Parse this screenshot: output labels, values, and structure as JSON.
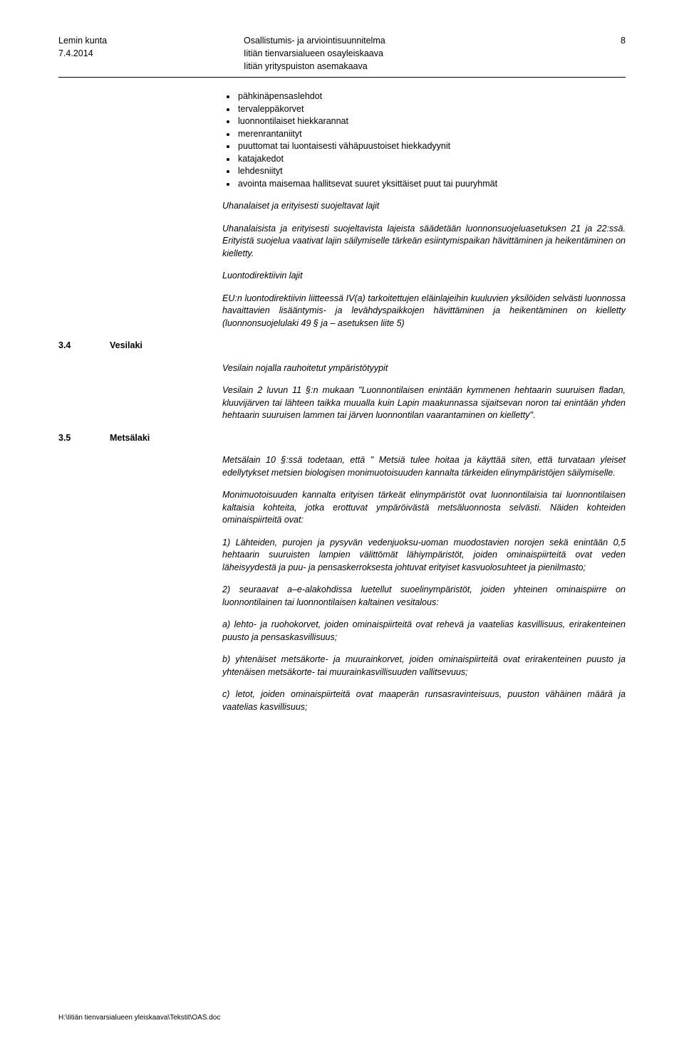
{
  "header": {
    "left_line1": "Lemin kunta",
    "left_line2": "7.4.2014",
    "center_line1": "Osallistumis- ja arviointisuunnitelma",
    "center_line2": "Iitiän tienvarsialueen osayleiskaava",
    "center_line3": "Iitiän yrityspuiston asemakaava",
    "page_number": "8"
  },
  "bullets": [
    "pähkinäpensaslehdot",
    "tervaleppäkorvet",
    "luonnontilaiset hiekkarannat",
    "merenrantaniityt",
    "puuttomat tai luontaisesti vähäpuustoiset hiekkadyynit",
    "katajakedot",
    "lehdesniityt",
    "avointa maisemaa hallitsevat suuret yksittäiset puut tai puuryhmät"
  ],
  "sub1_title": "Uhanalaiset ja erityisesti suojeltavat lajit",
  "sub1_para": "Uhanalaisista ja erityisesti suojeltavista lajeista säädetään luonnonsuojeluasetuksen 21 ja 22:ssä. Erityistä suojelua vaativat lajin säilymiselle tärkeän esiintymispaikan hävittäminen ja heikentäminen on kielletty.",
  "sub2_title": "Luontodirektiivin lajit",
  "sub2_para": "EU:n luontodirektiivin liitteessä IV(a) tarkoitettujen eläinlajeihin kuuluvien yksilöiden selvästi luonnossa havaittavien lisääntymis- ja levähdyspaikkojen hävittäminen ja heikentäminen on kielletty (luonnonsuojelulaki 49 § ja – asetuksen liite 5)",
  "sec34": {
    "num": "3.4",
    "title": "Vesilaki",
    "subtitle": "Vesilain nojalla rauhoitetut ympäristötyypit",
    "para": "Vesilain 2 luvun 11 §:n mukaan \"Luonnontilaisen enintään kymmenen hehtaarin suuruisen fladan, kluuvijärven tai lähteen taikka muualla kuin Lapin maakunnassa sijaitsevan noron tai enintään yhden hehtaarin suuruisen lammen tai järven luonnontilan vaarantaminen on kielletty\"."
  },
  "sec35": {
    "num": "3.5",
    "title": "Metsälaki",
    "p1": "Metsälain 10 §:ssä todetaan, että \" Metsiä tulee hoitaa ja käyttää siten, että turvataan yleiset edellytykset metsien biologisen monimuotoisuuden kannalta tärkeiden elinympäristöjen säilymiselle.",
    "p2": "Monimuotoisuuden kannalta erityisen tärkeät elinympäristöt ovat luonnontilaisia tai luonnontilaisen kaltaisia kohteita, jotka erottuvat ympäröivästä metsäluonnosta selvästi. Näiden kohteiden ominaispiirteitä ovat:",
    "p3": "1) Lähteiden, purojen ja pysyvän vedenjuoksu-uoman muodostavien norojen sekä enintään 0,5 hehtaarin suuruisten lampien välittömät lähiympäristöt, joiden ominaispiirteitä ovat veden läheisyydestä ja puu- ja pensaskerroksesta johtuvat erityiset kasvuolosuhteet ja pienilmasto;",
    "p4": "2) seuraavat a–e-alakohdissa luetellut suoelinympäristöt, joiden yhteinen ominaispiirre on luonnontilainen tai luonnontilaisen kaltainen vesitalous:",
    "p5": "a) lehto- ja ruohokorvet, joiden ominaispiirteitä ovat rehevä ja vaatelias kasvillisuus, erirakenteinen puusto ja pensaskasvillisuus;",
    "p6": "b) yhtenäiset metsäkorte- ja muurainkorvet, joiden ominaispiirteitä ovat erirakenteinen puusto ja yhtenäisen metsäkorte- tai muurainkasvillisuuden vallitsevuus;",
    "p7": "c) letot, joiden ominaispiirteitä ovat maaperän runsasravinteisuus, puuston vähäinen määrä ja vaatelias kasvillisuus;"
  },
  "footer": "H:\\Iitiän tienvarsialueen yleiskaava\\Tekstit\\OAS.doc"
}
